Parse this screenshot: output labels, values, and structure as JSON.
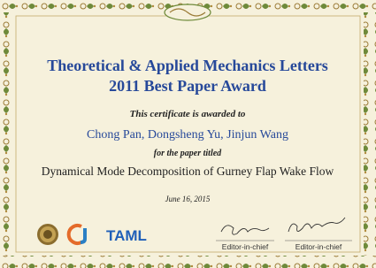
{
  "certificate": {
    "journal": "Theoretical & Applied Mechanics Letters",
    "award": "2011 Best Paper Award",
    "awarded_to_line": "This certificate is awarded to",
    "recipients": "Chong Pan, Dongsheng Yu, Jinjun Wang",
    "paper_line": "for the paper titled",
    "paper_title": "Dynamical Mode Decomposition of Gurney Flap Wake Flow",
    "date": "June 16, 2015",
    "logos": {
      "taml": "TAML"
    },
    "signatures": [
      {
        "role": "Editor-in-chief"
      },
      {
        "role": "Editor-in-chief"
      }
    ]
  }
}
